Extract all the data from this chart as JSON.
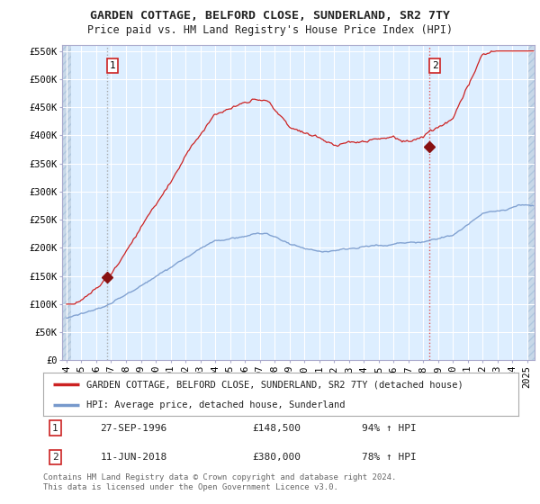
{
  "title": "GARDEN COTTAGE, BELFORD CLOSE, SUNDERLAND, SR2 7TY",
  "subtitle": "Price paid vs. HM Land Registry's House Price Index (HPI)",
  "ylabel_ticks": [
    "£0",
    "£50K",
    "£100K",
    "£150K",
    "£200K",
    "£250K",
    "£300K",
    "£350K",
    "£400K",
    "£450K",
    "£500K",
    "£550K"
  ],
  "ytick_values": [
    0,
    50000,
    100000,
    150000,
    200000,
    250000,
    300000,
    350000,
    400000,
    450000,
    500000,
    550000
  ],
  "ylim": [
    0,
    560000
  ],
  "xlim_start": 1993.7,
  "xlim_end": 2025.5,
  "xtick_years": [
    1994,
    1995,
    1996,
    1997,
    1998,
    1999,
    2000,
    2001,
    2002,
    2003,
    2004,
    2005,
    2006,
    2007,
    2008,
    2009,
    2010,
    2011,
    2012,
    2013,
    2014,
    2015,
    2016,
    2017,
    2018,
    2019,
    2020,
    2021,
    2022,
    2023,
    2024,
    2025
  ],
  "sale1_x": 1996.74,
  "sale1_y": 148500,
  "sale1_label": "1",
  "sale1_date": "27-SEP-1996",
  "sale1_price": "£148,500",
  "sale1_hpi": "94% ↑ HPI",
  "sale2_x": 2018.44,
  "sale2_y": 380000,
  "sale2_label": "2",
  "sale2_date": "11-JUN-2018",
  "sale2_price": "£380,000",
  "sale2_hpi": "78% ↑ HPI",
  "line_color_property": "#cc2222",
  "line_color_hpi": "#7799cc",
  "vline_color_1": "#aaaaaa",
  "vline_color_2": "#dd4444",
  "plot_bg_color": "#ddeeff",
  "hatch_color": "#c8ddf0",
  "grid_color": "#ffffff",
  "border_color": "#aaaacc",
  "background_color": "#ffffff",
  "legend_label_property": "GARDEN COTTAGE, BELFORD CLOSE, SUNDERLAND, SR2 7TY (detached house)",
  "legend_label_hpi": "HPI: Average price, detached house, Sunderland",
  "footer": "Contains HM Land Registry data © Crown copyright and database right 2024.\nThis data is licensed under the Open Government Licence v3.0.",
  "title_fontsize": 9.5,
  "subtitle_fontsize": 8.5,
  "tick_fontsize": 7.5,
  "legend_fontsize": 7.5,
  "footer_fontsize": 6.5
}
